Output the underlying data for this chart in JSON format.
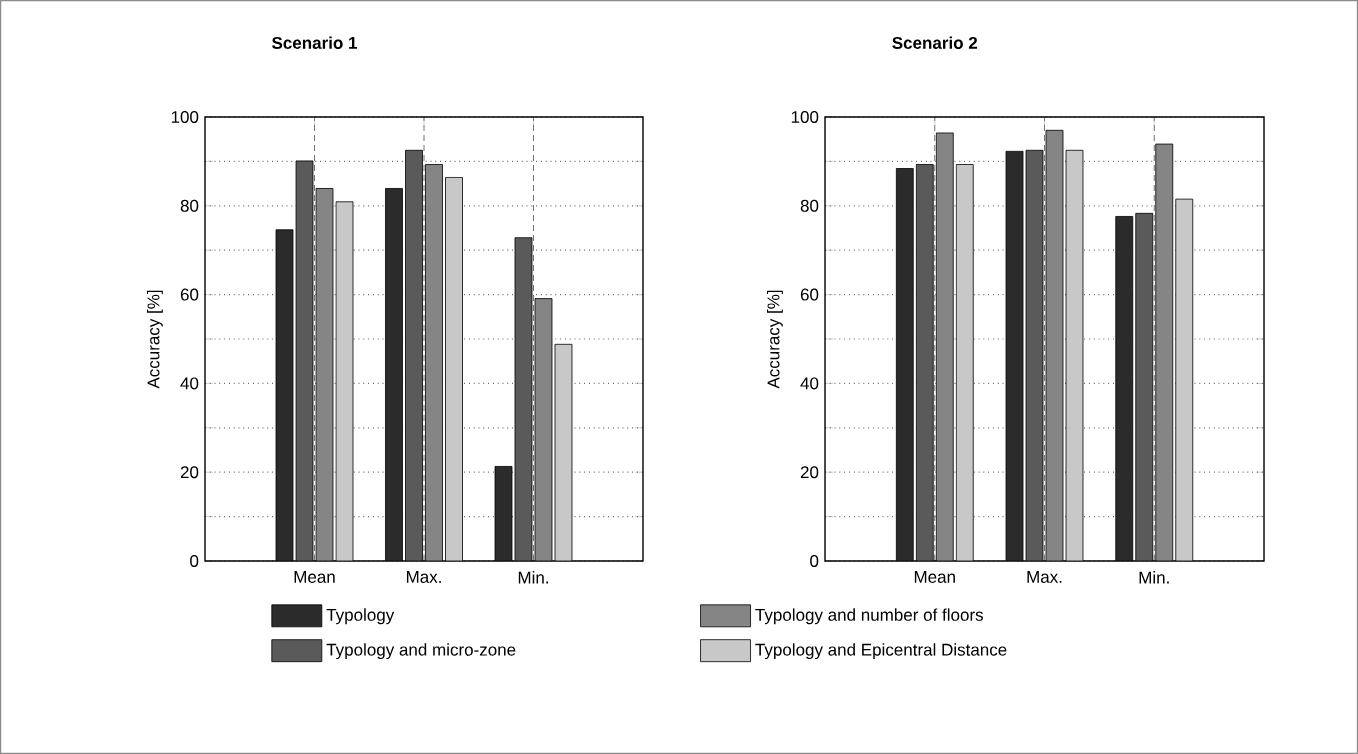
{
  "chart_data": [
    {
      "type": "bar",
      "title": "Scenario 1",
      "ylabel": "Accuracy [%]",
      "categories": [
        "Mean",
        "Max.",
        "Min."
      ],
      "series": [
        {
          "name": "Typology",
          "color": "#2b2b2b",
          "values": [
            74.6,
            83.9,
            21.3
          ]
        },
        {
          "name": "Typology and micro-zone",
          "color": "#5a5a5a",
          "values": [
            90.1,
            92.5,
            72.8
          ]
        },
        {
          "name": "Typology and number of floors",
          "color": "#858585",
          "values": [
            83.9,
            89.3,
            59.1
          ]
        },
        {
          "name": "Typology and Epicentral Distance",
          "color": "#c8c8c8",
          "values": [
            80.9,
            86.4,
            48.8
          ]
        }
      ],
      "ylim": [
        0,
        100
      ],
      "yticks": [
        0,
        {
          "value": 10,
          "label": null
        },
        20,
        {
          "value": 30,
          "label": null
        },
        40,
        {
          "value": 50,
          "label": null
        },
        60,
        {
          "value": 70,
          "label": null
        },
        80,
        {
          "value": 90,
          "label": null
        },
        100
      ],
      "grid": true,
      "legend": "bottom"
    },
    {
      "type": "bar",
      "title": "Scenario 2",
      "ylabel": "Accuracy [%]",
      "categories": [
        "Mean",
        "Max.",
        "Min."
      ],
      "series": [
        {
          "color": "#2b2b2b",
          "values": [
            88.4,
            92.3,
            77.6
          ]
        },
        {
          "color": "#5a5a5a",
          "values": [
            89.3,
            92.5,
            78.3
          ]
        },
        {
          "color": "#858585",
          "values": [
            96.4,
            97.0,
            93.9
          ]
        },
        {
          "color": "#c8c8c8",
          "values": [
            89.3,
            92.5,
            81.5
          ]
        }
      ],
      "ylim": [
        0,
        100
      ],
      "yticks": [
        0,
        {
          "value": 10,
          "label": null
        },
        20,
        {
          "value": 30,
          "label": null
        },
        40,
        {
          "value": 50,
          "label": null
        },
        60,
        {
          "value": 70,
          "label": null
        },
        80,
        {
          "value": 90,
          "label": null
        },
        100
      ],
      "grid": true
    }
  ]
}
